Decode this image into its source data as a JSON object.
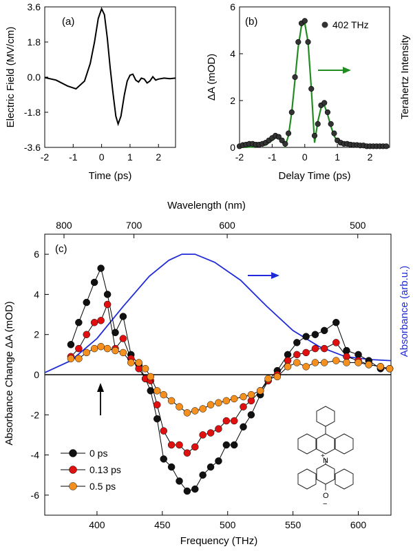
{
  "chart_data": [
    {
      "panel": "(a)",
      "type": "line",
      "xlabel": "Time (ps)",
      "ylabel": "Electric Field (MV/cm)",
      "xlim": [
        -2,
        2.6
      ],
      "ylim": [
        -3.6,
        3.6
      ],
      "x_ticks": [
        -2,
        -1,
        0,
        1,
        2
      ],
      "y_ticks": [
        3.6,
        1.8,
        0.0,
        -1.8,
        -3.6
      ],
      "y_tick_labels": [
        "3.6",
        "1.8",
        "0.0",
        "-1.8",
        "-3.6"
      ],
      "color": "#000000",
      "series": [
        {
          "x": [
            -2.0,
            -1.6,
            -1.2,
            -0.9,
            -0.6,
            -0.4,
            -0.25,
            -0.12,
            0.0,
            0.1,
            0.2,
            0.3,
            0.4,
            0.5,
            0.58,
            0.68,
            0.8,
            0.9,
            1.0,
            1.1,
            1.2,
            1.3,
            1.4,
            1.5,
            1.6,
            1.7,
            1.8,
            1.9,
            2.0,
            2.2,
            2.4,
            2.6
          ],
          "y": [
            -0.02,
            -0.15,
            -0.45,
            -0.6,
            -0.2,
            0.7,
            1.8,
            3.0,
            3.5,
            3.2,
            2.0,
            0.5,
            -0.8,
            -2.0,
            -2.4,
            -2.0,
            -0.9,
            -0.2,
            0.1,
            0.15,
            -0.15,
            -0.25,
            -0.05,
            -0.1,
            -0.3,
            -0.2,
            0.02,
            -0.15,
            -0.1,
            -0.05,
            -0.08,
            -0.05
          ]
        }
      ]
    },
    {
      "panel": "(b)",
      "type": "scatter",
      "xlabel": "Delay Time (ps)",
      "ylabel": "ΔA (mOD)",
      "right_label": "Terahertz Intensity",
      "xlim": [
        -2,
        2.6
      ],
      "ylim": [
        0,
        6
      ],
      "x_ticks": [
        -2,
        -1,
        0,
        1,
        2
      ],
      "y_ticks": [
        0,
        2,
        4,
        6
      ],
      "legend": "402 THz",
      "legend_position": "top-right",
      "arrow": "right",
      "series": [
        {
          "name": "402 THz",
          "marker_color": "#333333",
          "x": [
            -2.0,
            -1.9,
            -1.8,
            -1.7,
            -1.6,
            -1.5,
            -1.4,
            -1.3,
            -1.2,
            -1.1,
            -1.0,
            -0.9,
            -0.8,
            -0.7,
            -0.6,
            -0.5,
            -0.4,
            -0.3,
            -0.2,
            -0.1,
            0.0,
            0.1,
            0.2,
            0.3,
            0.4,
            0.5,
            0.6,
            0.7,
            0.8,
            0.9,
            1.0,
            1.1,
            1.2,
            1.3,
            1.4,
            1.5,
            1.6,
            1.7,
            1.8,
            1.9,
            2.0,
            2.1,
            2.2,
            2.3,
            2.4,
            2.5
          ],
          "y": [
            0.05,
            0.1,
            0.12,
            0.15,
            0.15,
            0.12,
            0.12,
            0.15,
            0.2,
            0.3,
            0.4,
            0.5,
            0.45,
            0.3,
            0.15,
            0.6,
            1.5,
            3.0,
            4.5,
            5.3,
            5.4,
            4.5,
            2.5,
            0.5,
            1.0,
            1.8,
            1.9,
            1.5,
            1.0,
            0.6,
            0.3,
            0.2,
            0.15,
            0.15,
            0.12,
            0.1,
            0.1,
            0.08,
            0.08,
            0.05,
            0.05,
            0.05,
            0.05,
            0.05,
            0.05,
            0.05
          ]
        },
        {
          "name": "Terahertz Intensity",
          "line_color": "#228b22",
          "x": [
            -2.0,
            -1.6,
            -1.2,
            -1.0,
            -0.9,
            -0.8,
            -0.7,
            -0.6,
            -0.5,
            -0.4,
            -0.3,
            -0.2,
            -0.1,
            0.0,
            0.1,
            0.2,
            0.3,
            0.4,
            0.5,
            0.6,
            0.7,
            0.8,
            0.9,
            1.0,
            1.2,
            1.4,
            1.6,
            2.0,
            2.6
          ],
          "y": [
            0.0,
            0.02,
            0.1,
            0.3,
            0.4,
            0.4,
            0.25,
            0.05,
            0.5,
            1.5,
            2.9,
            4.3,
            5.2,
            5.3,
            4.5,
            2.5,
            0.2,
            1.1,
            1.7,
            1.8,
            1.4,
            0.9,
            0.5,
            0.25,
            0.1,
            0.05,
            0.02,
            0.0,
            0.0
          ]
        }
      ]
    },
    {
      "panel": "(c)",
      "type": "line",
      "xlabel": "Frequency (THz)",
      "ylabel": "Absorbance Change ΔA (mOD)",
      "right_label": "Absorbance (arb.u.)",
      "top_label": "Wavelength (nm)",
      "xlim": [
        360,
        625
      ],
      "ylim": [
        -7,
        7
      ],
      "x_ticks": [
        400,
        450,
        500,
        550,
        600
      ],
      "y_ticks": [
        6,
        4,
        2,
        0,
        -2,
        -4,
        -6
      ],
      "top_ticks": [
        800,
        700,
        600,
        500
      ],
      "legend_position": "bottom-left",
      "series": [
        {
          "name": "0 ps",
          "color": "#111111",
          "x": [
            380,
            386,
            392,
            398,
            403,
            408,
            414,
            420,
            426,
            432,
            437,
            441,
            446,
            451,
            457,
            463,
            469,
            475,
            481,
            487,
            493,
            499,
            505,
            512,
            518,
            525,
            531,
            538,
            546,
            553,
            560,
            567,
            574,
            583,
            591,
            600,
            608,
            617,
            624
          ],
          "y": [
            1.5,
            2.6,
            3.6,
            4.6,
            5.3,
            4.0,
            2.1,
            2.9,
            1.0,
            0.5,
            -0.2,
            -0.8,
            -2.2,
            -4.2,
            -4.6,
            -5.3,
            -5.8,
            -5.7,
            -5.0,
            -4.6,
            -4.3,
            -3.5,
            -3.5,
            -2.6,
            -2.0,
            -1.0,
            -0.3,
            0.2,
            1.0,
            1.6,
            1.9,
            2.0,
            2.2,
            2.6,
            1.2,
            1.0,
            0.7,
            0.3,
            0.3
          ]
        },
        {
          "name": "0.13 ps",
          "color": "#e01010",
          "x": [
            380,
            386,
            392,
            398,
            403,
            408,
            414,
            420,
            426,
            432,
            437,
            441,
            446,
            451,
            457,
            463,
            469,
            475,
            481,
            487,
            493,
            499,
            505,
            512,
            518,
            525,
            531,
            538,
            546,
            553,
            560,
            567,
            574,
            583,
            591,
            600,
            608,
            617,
            624
          ],
          "y": [
            0.9,
            1.3,
            2.0,
            2.6,
            2.7,
            3.5,
            1.3,
            1.8,
            0.8,
            0.3,
            -0.2,
            -0.3,
            -1.5,
            -2.8,
            -3.5,
            -3.5,
            -3.9,
            -3.6,
            -3.0,
            -2.9,
            -2.7,
            -2.3,
            -2.3,
            -1.6,
            -1.3,
            -0.8,
            -0.3,
            0.0,
            0.7,
            1.0,
            1.1,
            1.3,
            1.3,
            1.6,
            0.9,
            0.7,
            0.5,
            0.4,
            0.3
          ]
        },
        {
          "name": "0.5 ps",
          "color": "#f5901e",
          "x": [
            380,
            386,
            392,
            398,
            403,
            408,
            414,
            420,
            426,
            432,
            437,
            441,
            446,
            451,
            457,
            463,
            469,
            475,
            481,
            487,
            493,
            499,
            505,
            512,
            518,
            525,
            531,
            538,
            546,
            553,
            560,
            567,
            574,
            583,
            591,
            600,
            608,
            617,
            624
          ],
          "y": [
            0.8,
            0.8,
            1.1,
            1.3,
            1.4,
            1.3,
            1.2,
            1.1,
            0.6,
            0.6,
            0.3,
            -0.1,
            -0.8,
            -1.0,
            -1.3,
            -1.6,
            -1.9,
            -1.8,
            -1.7,
            -1.5,
            -1.4,
            -1.3,
            -1.2,
            -1.1,
            -1.0,
            -0.8,
            -0.2,
            -0.1,
            0.4,
            0.6,
            0.4,
            0.6,
            0.6,
            0.7,
            0.6,
            0.6,
            0.5,
            0.4,
            0.3
          ]
        },
        {
          "name": "Absorbance",
          "color": "#1f2bd6",
          "x": [
            360,
            380,
            400,
            420,
            440,
            455,
            465,
            475,
            490,
            510,
            530,
            550,
            570,
            590,
            610,
            625
          ],
          "y": [
            0.1,
            0.7,
            1.8,
            3.4,
            4.9,
            5.7,
            6.0,
            6.0,
            5.6,
            4.7,
            3.4,
            2.2,
            1.4,
            0.9,
            0.75,
            0.7
          ]
        }
      ],
      "inset_text": [
        "+",
        "N",
        "O",
        "−"
      ]
    }
  ]
}
